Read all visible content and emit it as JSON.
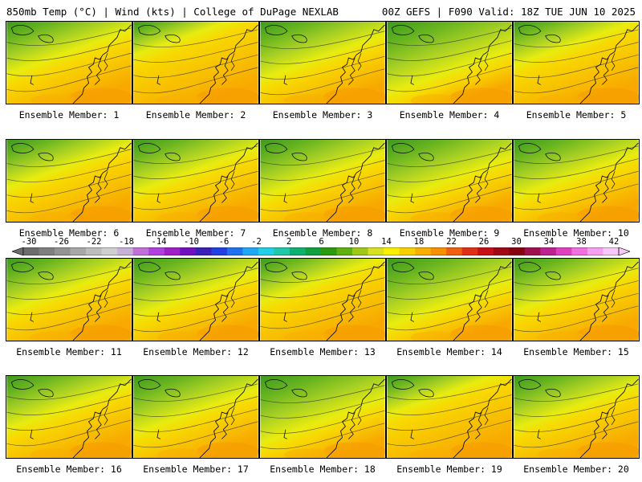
{
  "header": {
    "left": "850mb Temp (°C) | Wind (kts) | College of DuPage NEXLAB",
    "right": "00Z GEFS | F090 Valid: 18Z TUE JUN 10 2025"
  },
  "members": [
    {
      "label": "Ensemble Member: 1",
      "green": 0.55
    },
    {
      "label": "Ensemble Member: 2",
      "green": 0.35
    },
    {
      "label": "Ensemble Member: 3",
      "green": 0.6
    },
    {
      "label": "Ensemble Member: 4",
      "green": 0.75
    },
    {
      "label": "Ensemble Member: 5",
      "green": 0.45
    },
    {
      "label": "Ensemble Member: 6",
      "green": 0.5
    },
    {
      "label": "Ensemble Member: 7",
      "green": 0.55
    },
    {
      "label": "Ensemble Member: 8",
      "green": 0.6
    },
    {
      "label": "Ensemble Member: 9",
      "green": 0.65
    },
    {
      "label": "Ensemble Member: 10",
      "green": 0.6
    },
    {
      "label": "Ensemble Member: 11",
      "green": 0.55
    },
    {
      "label": "Ensemble Member: 12",
      "green": 0.6
    },
    {
      "label": "Ensemble Member: 13",
      "green": 0.45
    },
    {
      "label": "Ensemble Member: 14",
      "green": 0.7
    },
    {
      "label": "Ensemble Member: 15",
      "green": 0.55
    },
    {
      "label": "Ensemble Member: 16",
      "green": 0.55
    },
    {
      "label": "Ensemble Member: 17",
      "green": 0.6
    },
    {
      "label": "Ensemble Member: 18",
      "green": 0.7
    },
    {
      "label": "Ensemble Member: 19",
      "green": 0.4
    },
    {
      "label": "Ensemble Member: 20",
      "green": 0.55
    }
  ],
  "colorbar": {
    "labels": [
      "-30",
      "-26",
      "-22",
      "-18",
      "-14",
      "-10",
      "-6",
      "-2",
      "2",
      "6",
      "10",
      "14",
      "18",
      "22",
      "26",
      "30",
      "34",
      "38",
      "42"
    ],
    "colors": [
      "#6c6c6c",
      "#7f7f7f",
      "#939393",
      "#a8a8a8",
      "#bdbdbd",
      "#cfcfcf",
      "#c9b0d6",
      "#c070d8",
      "#b040e0",
      "#a020c8",
      "#7010c0",
      "#3a1fb8",
      "#2040e0",
      "#2070f0",
      "#20a8f8",
      "#20d0e8",
      "#20c8a8",
      "#10b070",
      "#10a040",
      "#2c9a10",
      "#60b010",
      "#a0c818",
      "#d8e020",
      "#f8f000",
      "#f8d000",
      "#f8b000",
      "#f89000",
      "#f06010",
      "#e03018",
      "#c81018",
      "#a00818",
      "#880010",
      "#a01050",
      "#c02090",
      "#e040c0",
      "#f070e0",
      "#f8a0f0",
      "#f8c8f8"
    ]
  }
}
